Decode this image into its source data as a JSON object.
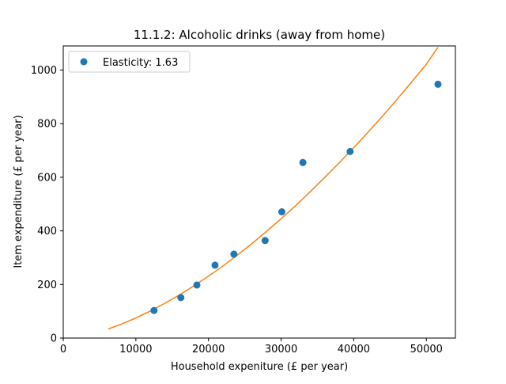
{
  "chart_data": {
    "type": "scatter",
    "title": "11.1.2: Alcoholic drinks (away from home)",
    "xlabel": "Household expeniture (£ per year)",
    "ylabel": "Item expenditure (£ per year)",
    "xlim": [
      0,
      54000
    ],
    "ylim": [
      0,
      1090
    ],
    "xticks": [
      0,
      10000,
      20000,
      30000,
      40000,
      50000
    ],
    "yticks": [
      0,
      200,
      400,
      600,
      800,
      1000
    ],
    "grid": false,
    "legend_position": "top-left",
    "series": [
      {
        "name": "Elasticity: 1.63",
        "kind": "points",
        "color": "#1f77b4",
        "x": [
          12500,
          16200,
          18400,
          20900,
          23500,
          27800,
          30100,
          33000,
          39500,
          51600
        ],
        "y": [
          103,
          151,
          198,
          272,
          313,
          364,
          471,
          655,
          696,
          947
        ]
      },
      {
        "kind": "line",
        "color": "#ff7f0e",
        "x": [
          6200,
          8000,
          10000,
          12000,
          14000,
          16000,
          18000,
          20000,
          22000,
          24000,
          26000,
          28000,
          30000,
          32000,
          34000,
          36000,
          38000,
          40000,
          42000,
          44000,
          46000,
          48000,
          50000,
          51600
        ],
        "y": [
          34,
          52,
          75,
          101,
          130,
          161,
          195,
          231,
          269,
          310,
          353,
          398,
          445,
          494,
          546,
          599,
          654,
          710,
          769,
          829,
          892,
          956,
          1022,
          1085
        ]
      }
    ]
  }
}
